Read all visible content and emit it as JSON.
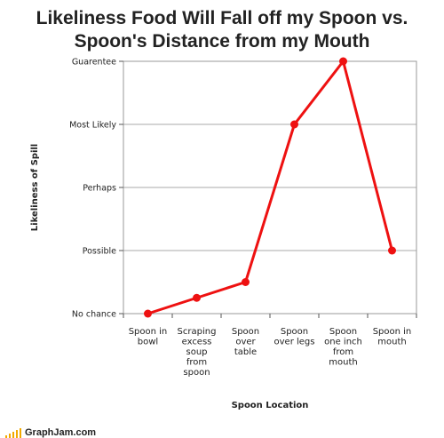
{
  "chart_data": {
    "type": "line",
    "title_lines": [
      "Likeliness Food Will Fall off my Spoon vs.",
      "Spoon's Distance from my Mouth"
    ],
    "xlabel": "Spoon Location",
    "ylabel": "Likeliness of Spill",
    "categories": [
      [
        "Spoon in",
        "bowl"
      ],
      [
        "Scraping",
        "excess",
        "soup",
        "from",
        "spoon"
      ],
      [
        "Spoon",
        "over",
        "table"
      ],
      [
        "Spoon",
        "over legs"
      ],
      [
        "Spoon",
        "one inch",
        "from",
        "mouth"
      ],
      [
        "Spoon in",
        "mouth"
      ]
    ],
    "y_ticks": [
      {
        "label": "No chance",
        "value": 0
      },
      {
        "label": "Possible",
        "value": 1
      },
      {
        "label": "Perhaps",
        "value": 2
      },
      {
        "label": "Most Likely",
        "value": 3
      },
      {
        "label": "Guarentee",
        "value": 4
      }
    ],
    "ylim": [
      0,
      4
    ],
    "series": [
      {
        "name": "Likeliness of Spill",
        "values": [
          0,
          0.25,
          0.5,
          3,
          4,
          1
        ]
      }
    ],
    "grid": "horizontal",
    "line_color": "#ee1111",
    "marker_color": "#ee1111"
  },
  "footer": {
    "brand": "GraphJam.com",
    "accent": "#f2a900"
  }
}
